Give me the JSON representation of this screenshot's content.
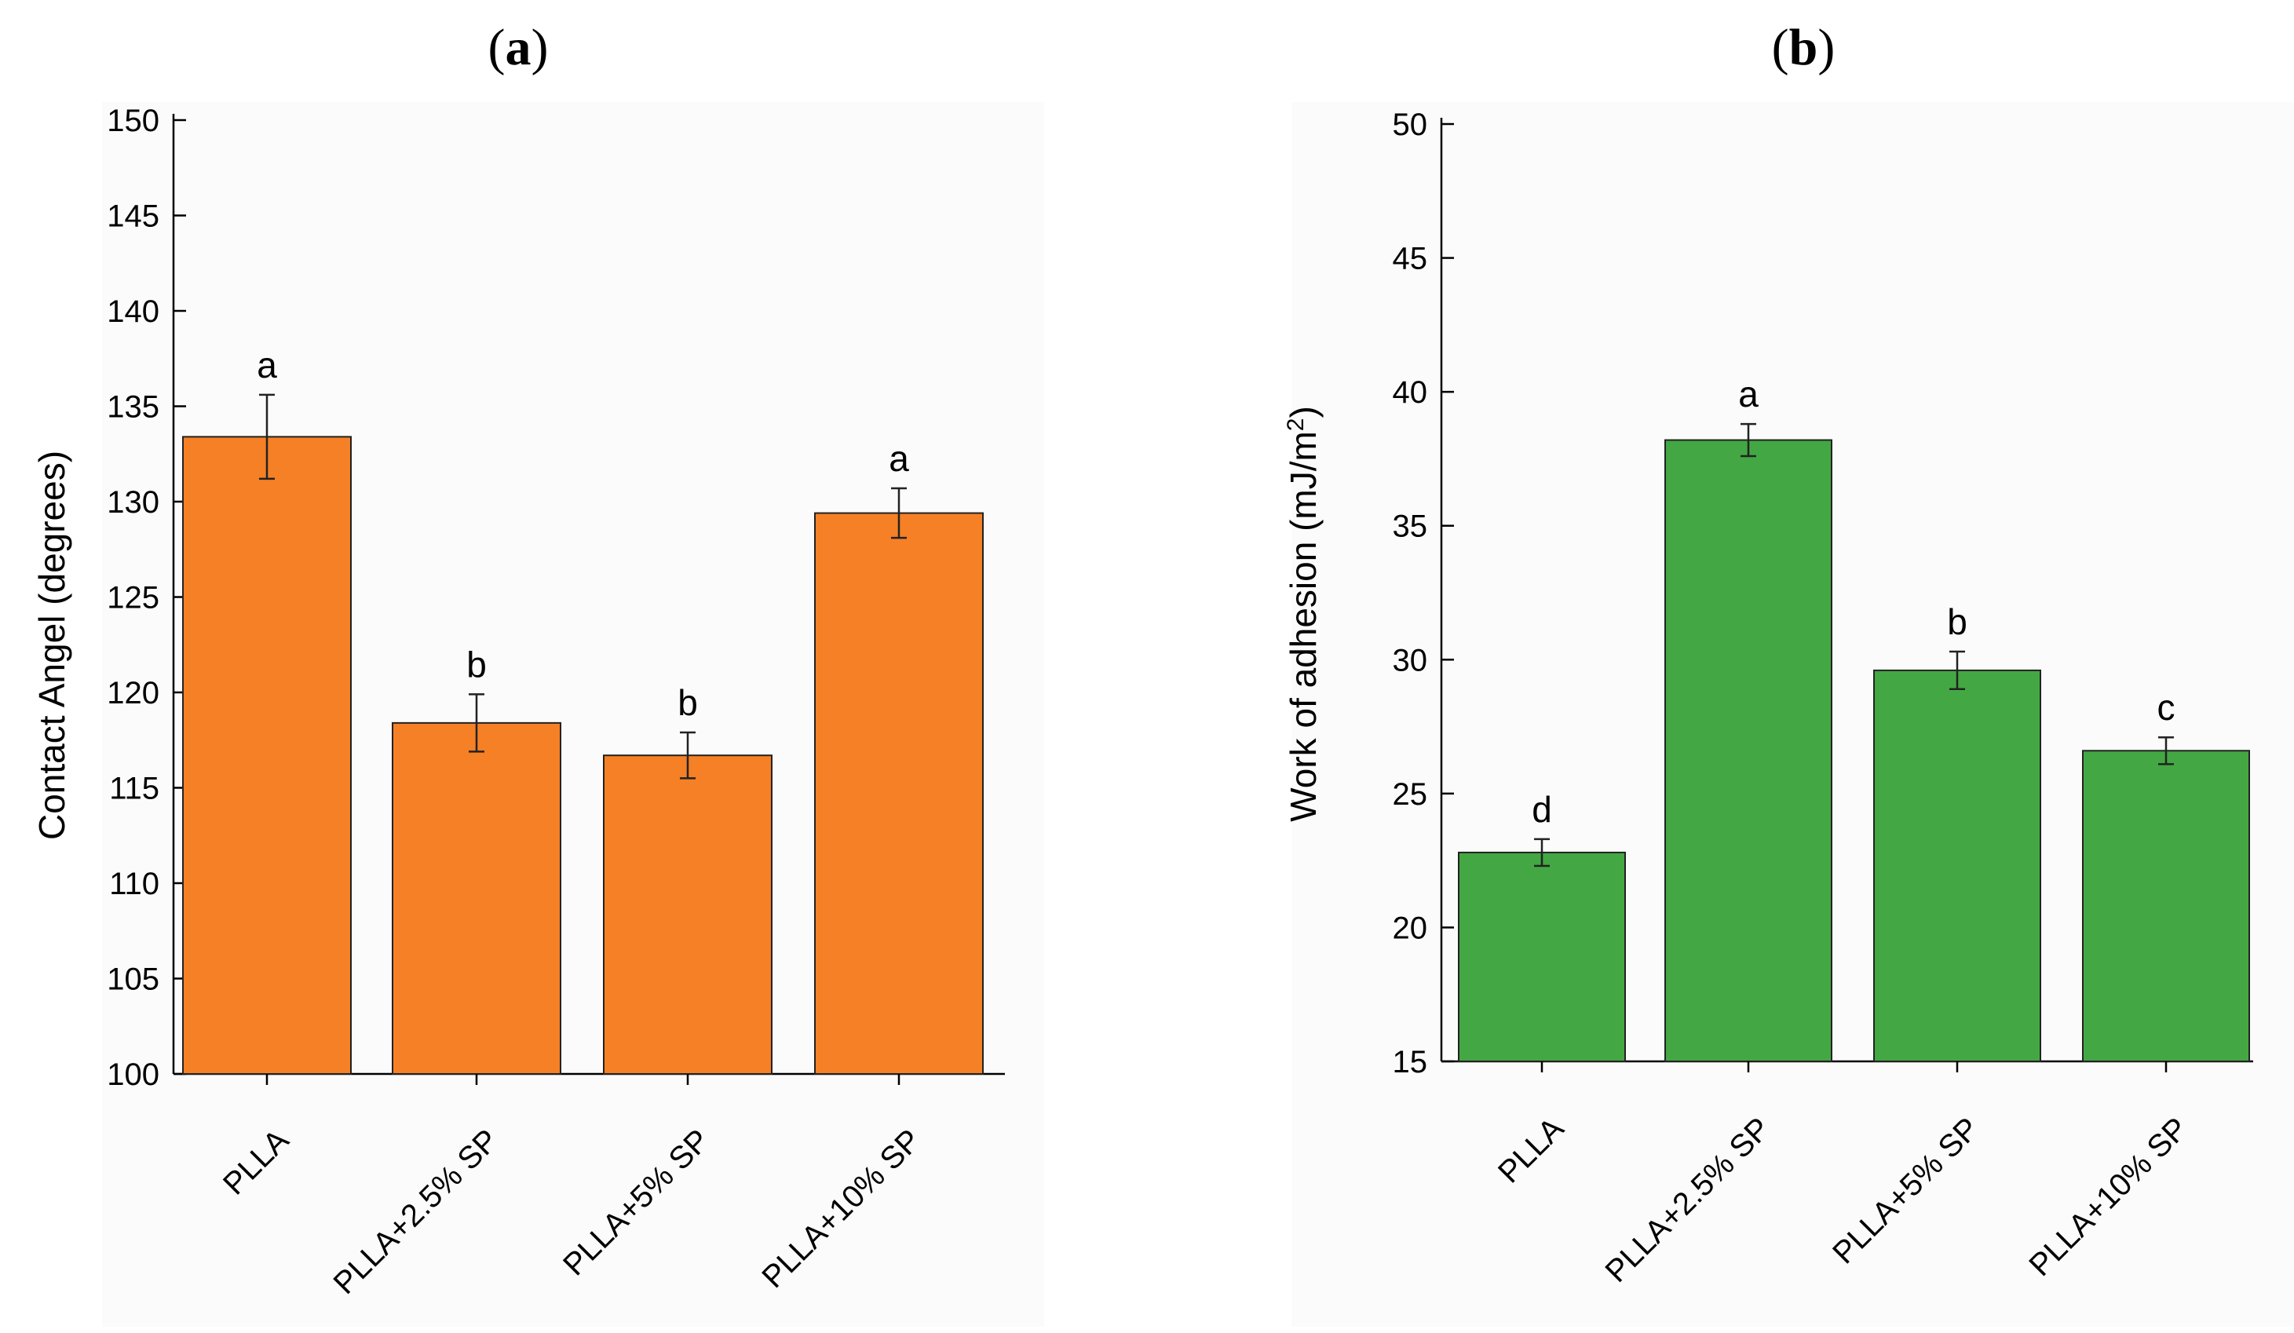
{
  "chart_data": [
    {
      "panel": "a",
      "panel_label": {
        "open": "(",
        "letter": "a",
        "close": ")"
      },
      "type": "bar",
      "ylabel": "Contact Angel (degrees)",
      "xlabel": "",
      "ylim": [
        100,
        150
      ],
      "yticks": [
        "100",
        "105",
        "110",
        "115",
        "120",
        "125",
        "130",
        "135",
        "140",
        "145",
        "150"
      ],
      "categories": [
        "PLLA",
        "PLLA+2.5% SP",
        "PLLA+5% SP",
        "PLLA+10% SP"
      ],
      "values": [
        133.4,
        118.4,
        116.7,
        129.4
      ],
      "errors": [
        2.2,
        1.5,
        1.2,
        1.3
      ],
      "significance": [
        "a",
        "b",
        "b",
        "a"
      ],
      "bar_color": "#F58025",
      "grid": false
    },
    {
      "panel": "b",
      "panel_label": {
        "open": "(",
        "letter": "b",
        "close": ")"
      },
      "type": "bar",
      "ylabel_main": "Work of adhesion (mJ/m",
      "ylabel_sup": "2",
      "ylabel_end": ")",
      "xlabel": "",
      "ylim": [
        15,
        50
      ],
      "yticks": [
        "15",
        "20",
        "25",
        "30",
        "35",
        "40",
        "45",
        "50"
      ],
      "categories": [
        "PLLA",
        "PLLA+2.5% SP",
        "PLLA+5% SP",
        "PLLA+10% SP"
      ],
      "values": [
        22.8,
        38.2,
        29.6,
        26.6
      ],
      "errors": [
        0.5,
        0.6,
        0.7,
        0.5
      ],
      "significance": [
        "d",
        "a",
        "b",
        "c"
      ],
      "bar_color": "#43A843",
      "grid": false
    }
  ]
}
